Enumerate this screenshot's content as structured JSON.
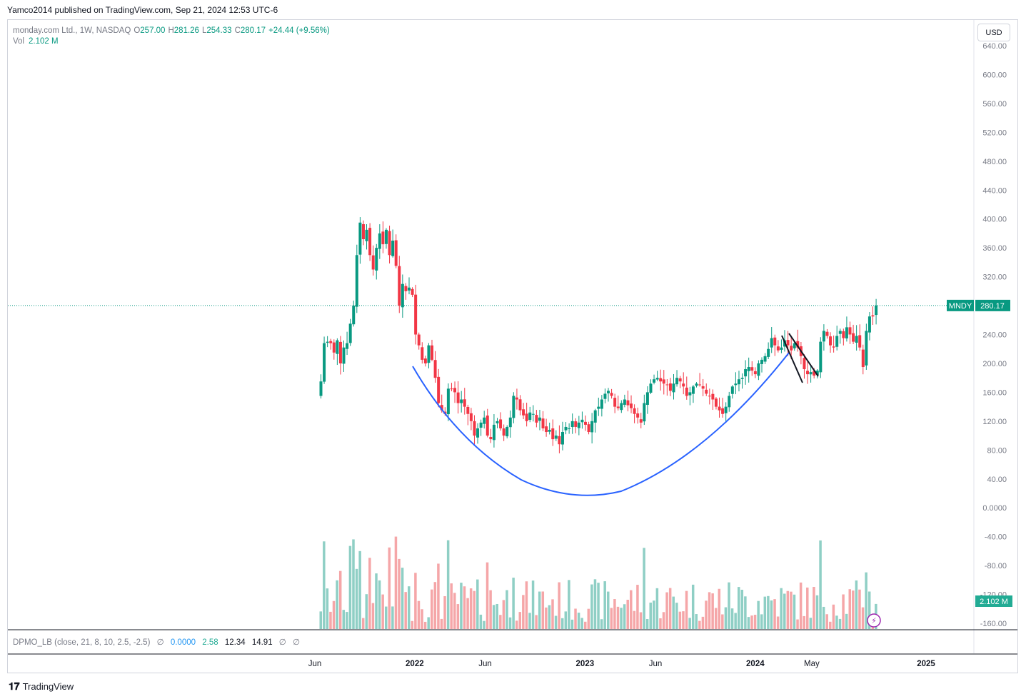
{
  "header": {
    "publisher": "Yamco2014 published on TradingView.com, Sep 21, 2024 12:53 UTC-6"
  },
  "legend": {
    "symbol": "monday.com Ltd., 1W, NASDAQ",
    "open_label": "O",
    "open": "257.00",
    "high_label": "H",
    "high": "281.26",
    "low_label": "L",
    "low": "254.33",
    "close_label": "C",
    "close": "280.17",
    "change": "+24.44 (+9.56%)",
    "vol_label": "Vol",
    "vol": "2.102 M"
  },
  "currency_button": "USD",
  "indicator": {
    "name": "DPMO_LB (close, 21, 8, 10, 2.5, -2.5)",
    "sym1": "∅",
    "v1": "0.0000",
    "v2": "2.58",
    "v3": "12.34",
    "v4": "14.91",
    "sym2": "∅",
    "sym3": "∅"
  },
  "price_tag": {
    "symbol": "MNDY",
    "value": "280.17"
  },
  "volume_tag": "2.102 M",
  "branding": "TradingView",
  "colors": {
    "up": "#089981",
    "down": "#f23645",
    "vol_up": "#8fcfc5",
    "vol_down": "#f5a6a8",
    "curve": "#2962ff",
    "grid": "#d1d4dc"
  },
  "chart_data": {
    "type": "candlestick",
    "title": "monday.com Ltd., 1W, NASDAQ",
    "y_axis_ticks": [
      "640.00",
      "600.00",
      "560.00",
      "520.00",
      "480.00",
      "440.00",
      "400.00",
      "360.00",
      "320.00",
      "280.00",
      "240.00",
      "200.00",
      "160.00",
      "120.00",
      "80.00",
      "40.00",
      "0.0000",
      "-40.00",
      "-80.00",
      "-120.00",
      "-160.00"
    ],
    "x_axis_ticks": [
      "Jun",
      "2022",
      "Jun",
      "2023",
      "Jun",
      "2024",
      "May",
      "2025"
    ],
    "ylim": [
      -165,
      650
    ],
    "last_close": 280.17,
    "price_path": [
      {
        "date": "2021-06-14",
        "close": 175
      },
      {
        "date": "2021-06-21",
        "close": 228
      },
      {
        "date": "2021-06-28",
        "close": 230
      },
      {
        "date": "2021-07-05",
        "close": 228
      },
      {
        "date": "2021-07-12",
        "close": 215
      },
      {
        "date": "2021-07-19",
        "close": 232
      },
      {
        "date": "2021-07-26",
        "close": 200
      },
      {
        "date": "2021-08-02",
        "close": 222
      },
      {
        "date": "2021-08-09",
        "close": 228
      },
      {
        "date": "2021-08-16",
        "close": 255
      },
      {
        "date": "2021-08-23",
        "close": 280
      },
      {
        "date": "2021-08-30",
        "close": 350
      },
      {
        "date": "2021-09-06",
        "close": 395
      },
      {
        "date": "2021-09-13",
        "close": 372
      },
      {
        "date": "2021-09-20",
        "close": 385
      },
      {
        "date": "2021-09-27",
        "close": 350
      },
      {
        "date": "2021-10-04",
        "close": 330
      },
      {
        "date": "2021-10-11",
        "close": 360
      },
      {
        "date": "2021-10-18",
        "close": 380
      },
      {
        "date": "2021-10-25",
        "close": 365
      },
      {
        "date": "2021-11-01",
        "close": 385
      },
      {
        "date": "2021-11-08",
        "close": 350
      },
      {
        "date": "2021-11-15",
        "close": 370
      },
      {
        "date": "2021-11-22",
        "close": 335
      },
      {
        "date": "2021-11-29",
        "close": 280
      },
      {
        "date": "2021-12-06",
        "close": 310
      },
      {
        "date": "2021-12-13",
        "close": 300
      },
      {
        "date": "2021-12-20",
        "close": 305
      },
      {
        "date": "2021-12-27",
        "close": 295
      },
      {
        "date": "2022-01-03",
        "close": 240
      },
      {
        "date": "2022-01-10",
        "close": 225
      },
      {
        "date": "2022-01-17",
        "close": 205
      },
      {
        "date": "2022-01-24",
        "close": 200
      },
      {
        "date": "2022-01-31",
        "close": 225
      },
      {
        "date": "2022-02-07",
        "close": 205
      },
      {
        "date": "2022-02-14",
        "close": 180
      },
      {
        "date": "2022-02-21",
        "close": 145
      },
      {
        "date": "2022-02-28",
        "close": 135
      },
      {
        "date": "2022-03-07",
        "close": 130
      },
      {
        "date": "2022-03-14",
        "close": 165
      },
      {
        "date": "2022-03-21",
        "close": 165
      },
      {
        "date": "2022-03-28",
        "close": 160
      },
      {
        "date": "2022-04-04",
        "close": 145
      },
      {
        "date": "2022-04-11",
        "close": 150
      },
      {
        "date": "2022-04-18",
        "close": 140
      },
      {
        "date": "2022-04-25",
        "close": 130
      },
      {
        "date": "2022-05-02",
        "close": 120
      },
      {
        "date": "2022-05-09",
        "close": 100
      },
      {
        "date": "2022-05-16",
        "close": 110
      },
      {
        "date": "2022-05-23",
        "close": 118
      },
      {
        "date": "2022-05-30",
        "close": 125
      },
      {
        "date": "2022-06-06",
        "close": 100
      },
      {
        "date": "2022-06-13",
        "close": 95
      },
      {
        "date": "2022-06-20",
        "close": 115
      },
      {
        "date": "2022-06-27",
        "close": 120
      },
      {
        "date": "2022-07-04",
        "close": 110
      },
      {
        "date": "2022-07-11",
        "close": 100
      },
      {
        "date": "2022-07-18",
        "close": 112
      },
      {
        "date": "2022-07-25",
        "close": 125
      },
      {
        "date": "2022-08-01",
        "close": 155
      },
      {
        "date": "2022-08-08",
        "close": 150
      },
      {
        "date": "2022-08-15",
        "close": 135
      },
      {
        "date": "2022-08-22",
        "close": 128
      },
      {
        "date": "2022-08-29",
        "close": 120
      },
      {
        "date": "2022-09-05",
        "close": 132
      },
      {
        "date": "2022-09-12",
        "close": 130
      },
      {
        "date": "2022-09-19",
        "close": 118
      },
      {
        "date": "2022-09-26",
        "close": 125
      },
      {
        "date": "2022-10-03",
        "close": 110
      },
      {
        "date": "2022-10-10",
        "close": 105
      },
      {
        "date": "2022-10-17",
        "close": 108
      },
      {
        "date": "2022-10-24",
        "close": 95
      },
      {
        "date": "2022-10-31",
        "close": 100
      },
      {
        "date": "2022-11-07",
        "close": 88
      },
      {
        "date": "2022-11-14",
        "close": 105
      },
      {
        "date": "2022-11-21",
        "close": 112
      },
      {
        "date": "2022-11-28",
        "close": 110
      },
      {
        "date": "2022-12-05",
        "close": 120
      },
      {
        "date": "2022-12-12",
        "close": 112
      },
      {
        "date": "2022-12-19",
        "close": 118
      },
      {
        "date": "2022-12-26",
        "close": 122
      },
      {
        "date": "2023-01-02",
        "close": 115
      },
      {
        "date": "2023-01-09",
        "close": 105
      },
      {
        "date": "2023-01-16",
        "close": 120
      },
      {
        "date": "2023-01-23",
        "close": 135
      },
      {
        "date": "2023-01-30",
        "close": 140
      },
      {
        "date": "2023-02-06",
        "close": 150
      },
      {
        "date": "2023-02-13",
        "close": 158
      },
      {
        "date": "2023-02-20",
        "close": 162
      },
      {
        "date": "2023-02-27",
        "close": 155
      },
      {
        "date": "2023-03-06",
        "close": 140
      },
      {
        "date": "2023-03-13",
        "close": 138
      },
      {
        "date": "2023-03-20",
        "close": 145
      },
      {
        "date": "2023-03-27",
        "close": 150
      },
      {
        "date": "2023-04-03",
        "close": 142
      },
      {
        "date": "2023-04-10",
        "close": 138
      },
      {
        "date": "2023-04-17",
        "close": 130
      },
      {
        "date": "2023-04-24",
        "close": 125
      },
      {
        "date": "2023-05-01",
        "close": 118
      },
      {
        "date": "2023-05-08",
        "close": 145
      },
      {
        "date": "2023-05-15",
        "close": 160
      },
      {
        "date": "2023-05-22",
        "close": 172
      },
      {
        "date": "2023-05-29",
        "close": 178
      },
      {
        "date": "2023-06-05",
        "close": 180
      },
      {
        "date": "2023-06-12",
        "close": 175
      },
      {
        "date": "2023-06-19",
        "close": 172
      },
      {
        "date": "2023-06-26",
        "close": 170
      },
      {
        "date": "2023-07-03",
        "close": 162
      },
      {
        "date": "2023-07-10",
        "close": 172
      },
      {
        "date": "2023-07-17",
        "close": 180
      },
      {
        "date": "2023-07-24",
        "close": 175
      },
      {
        "date": "2023-07-31",
        "close": 168
      },
      {
        "date": "2023-08-07",
        "close": 155
      },
      {
        "date": "2023-08-14",
        "close": 160
      },
      {
        "date": "2023-08-21",
        "close": 168
      },
      {
        "date": "2023-08-28",
        "close": 172
      },
      {
        "date": "2023-09-04",
        "close": 170
      },
      {
        "date": "2023-09-11",
        "close": 165
      },
      {
        "date": "2023-09-18",
        "close": 158
      },
      {
        "date": "2023-09-25",
        "close": 155
      },
      {
        "date": "2023-10-02",
        "close": 150
      },
      {
        "date": "2023-10-09",
        "close": 140
      },
      {
        "date": "2023-10-16",
        "close": 135
      },
      {
        "date": "2023-10-23",
        "close": 130
      },
      {
        "date": "2023-10-30",
        "close": 140
      },
      {
        "date": "2023-11-06",
        "close": 155
      },
      {
        "date": "2023-11-13",
        "close": 168
      },
      {
        "date": "2023-11-20",
        "close": 172
      },
      {
        "date": "2023-11-27",
        "close": 178
      },
      {
        "date": "2023-12-04",
        "close": 180
      },
      {
        "date": "2023-12-11",
        "close": 192
      },
      {
        "date": "2023-12-18",
        "close": 195
      },
      {
        "date": "2023-12-25",
        "close": 190
      },
      {
        "date": "2024-01-01",
        "close": 185
      },
      {
        "date": "2024-01-08",
        "close": 200
      },
      {
        "date": "2024-01-15",
        "close": 205
      },
      {
        "date": "2024-01-22",
        "close": 210
      },
      {
        "date": "2024-01-29",
        "close": 220
      },
      {
        "date": "2024-02-05",
        "close": 235
      },
      {
        "date": "2024-02-12",
        "close": 225
      },
      {
        "date": "2024-02-19",
        "close": 218
      },
      {
        "date": "2024-02-26",
        "close": 222
      },
      {
        "date": "2024-03-04",
        "close": 232
      },
      {
        "date": "2024-03-11",
        "close": 225
      },
      {
        "date": "2024-03-18",
        "close": 218
      },
      {
        "date": "2024-03-25",
        "close": 228
      },
      {
        "date": "2024-04-01",
        "close": 222
      },
      {
        "date": "2024-04-08",
        "close": 210
      },
      {
        "date": "2024-04-15",
        "close": 192
      },
      {
        "date": "2024-04-22",
        "close": 185
      },
      {
        "date": "2024-04-29",
        "close": 188
      },
      {
        "date": "2024-05-06",
        "close": 183
      },
      {
        "date": "2024-05-13",
        "close": 190
      },
      {
        "date": "2024-05-20",
        "close": 230
      },
      {
        "date": "2024-05-27",
        "close": 245
      },
      {
        "date": "2024-06-03",
        "close": 238
      },
      {
        "date": "2024-06-10",
        "close": 225
      },
      {
        "date": "2024-06-17",
        "close": 222
      },
      {
        "date": "2024-06-24",
        "close": 238
      },
      {
        "date": "2024-07-01",
        "close": 245
      },
      {
        "date": "2024-07-08",
        "close": 235
      },
      {
        "date": "2024-07-15",
        "close": 250
      },
      {
        "date": "2024-07-22",
        "close": 240
      },
      {
        "date": "2024-07-29",
        "close": 230
      },
      {
        "date": "2024-08-05",
        "close": 238
      },
      {
        "date": "2024-08-12",
        "close": 222
      },
      {
        "date": "2024-08-19",
        "close": 195
      },
      {
        "date": "2024-08-26",
        "close": 245
      },
      {
        "date": "2024-09-02",
        "close": 265
      },
      {
        "date": "2024-09-09",
        "close": 265
      },
      {
        "date": "2024-09-16",
        "close": 280.17
      }
    ]
  }
}
